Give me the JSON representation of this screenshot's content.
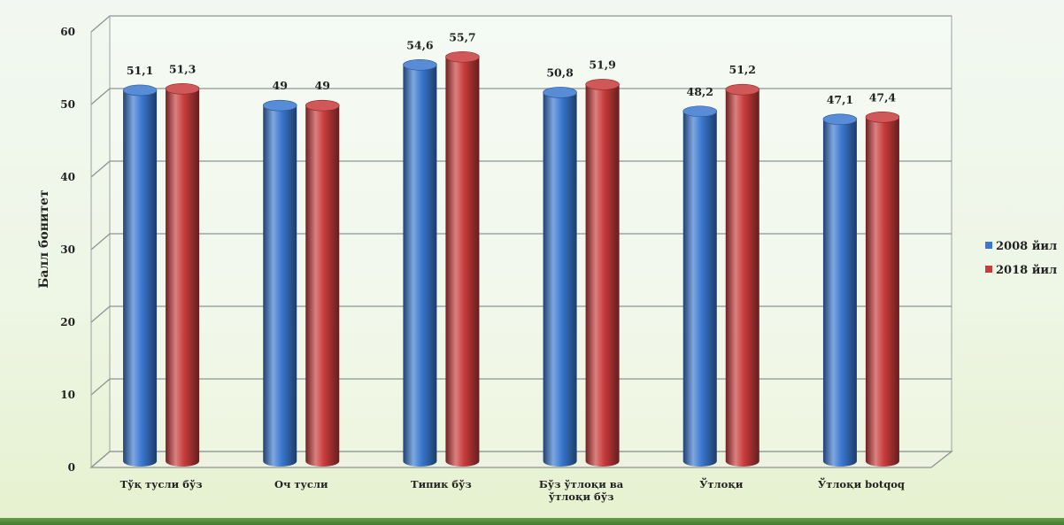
{
  "chart_data": {
    "type": "bar",
    "title": "",
    "xlabel": "",
    "ylabel": "Балл бонитет",
    "ylim": [
      0,
      60
    ],
    "yticks": [
      "0",
      "10",
      "20",
      "30",
      "40",
      "50",
      "60"
    ],
    "grid": true,
    "legend_position": "right",
    "categories": [
      [
        "Тўқ тусли бўз"
      ],
      [
        "Оч тусли"
      ],
      [
        "Типик бўз"
      ],
      [
        "Бўз ўтлоқи ва",
        "ўтлоқи бўз"
      ],
      [
        "Ўтлоқи"
      ],
      [
        "Ўтлоқи botqoq"
      ]
    ],
    "series": [
      {
        "name": "2008 йил",
        "color": "#3a78d0",
        "values": [
          51.1,
          49,
          54.6,
          50.8,
          48.2,
          47.1
        ],
        "labels": [
          "51,1",
          "49",
          "54,6",
          "50,8",
          "48,2",
          "47,1"
        ]
      },
      {
        "name": "2018 йил",
        "color": "#c83b3b",
        "values": [
          51.3,
          49,
          55.7,
          51.9,
          51.2,
          47.4
        ],
        "labels": [
          "51,3",
          "49",
          "55,7",
          "51,9",
          "51,2",
          "47,4"
        ]
      }
    ]
  }
}
